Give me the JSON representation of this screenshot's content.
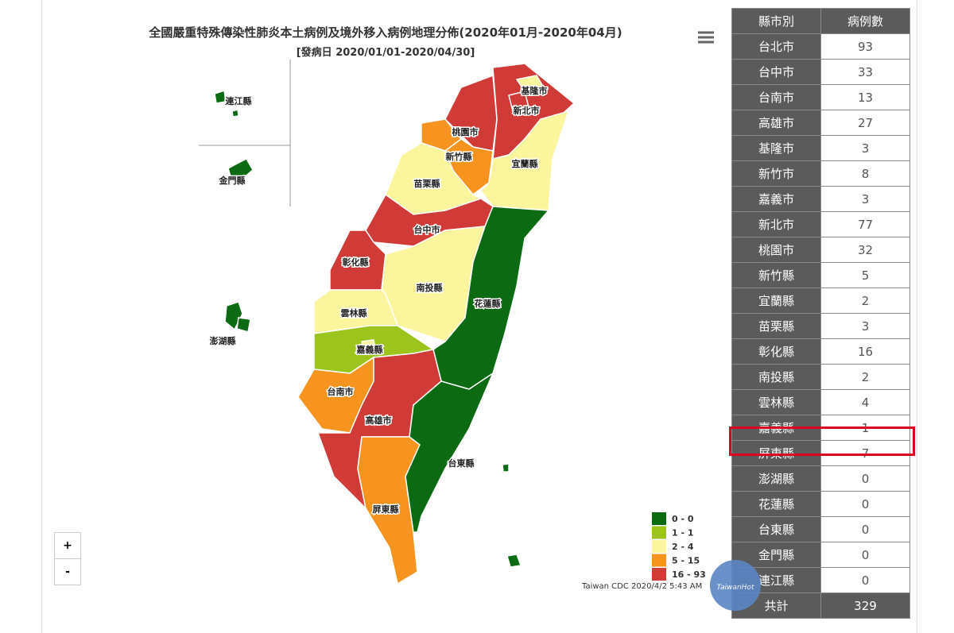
{
  "header": {
    "title": "全國嚴重特殊傳染性肺炎本土病例及境外移入病例地理分佈(2020年01月-2020年04月)",
    "subtitle": "[發病日 2020/01/01-2020/04/30]"
  },
  "zoom": {
    "in": "+",
    "out": "-"
  },
  "legend": [
    {
      "label": "0 - 0",
      "color": "#0b6a12"
    },
    {
      "label": "1 - 1",
      "color": "#9cc41d"
    },
    {
      "label": "2 - 4",
      "color": "#fbf59e"
    },
    {
      "label": "5 - 15",
      "color": "#f6941f"
    },
    {
      "label": "16 - 93",
      "color": "#d03a37"
    }
  ],
  "attribution": "Taiwan CDC 2020/4/2 5:43 AM",
  "table": {
    "header": [
      "縣市別",
      "病例數"
    ],
    "rows": [
      [
        "台北市",
        93
      ],
      [
        "台中市",
        33
      ],
      [
        "台南市",
        13
      ],
      [
        "高雄市",
        27
      ],
      [
        "基隆市",
        3
      ],
      [
        "新竹市",
        8
      ],
      [
        "嘉義市",
        3
      ],
      [
        "新北市",
        77
      ],
      [
        "桃園市",
        32
      ],
      [
        "新竹縣",
        5
      ],
      [
        "宜蘭縣",
        2
      ],
      [
        "苗栗縣",
        3
      ],
      [
        "彰化縣",
        16
      ],
      [
        "南投縣",
        2
      ],
      [
        "雲林縣",
        4
      ],
      [
        "嘉義縣",
        1
      ],
      [
        "屏東縣",
        7
      ],
      [
        "澎湖縣",
        0
      ],
      [
        "花蓮縣",
        0
      ],
      [
        "台東縣",
        0
      ],
      [
        "金門縣",
        0
      ],
      [
        "連江縣",
        0
      ]
    ],
    "total": [
      "共計",
      329
    ]
  },
  "watermark": "TaiwanHot"
}
